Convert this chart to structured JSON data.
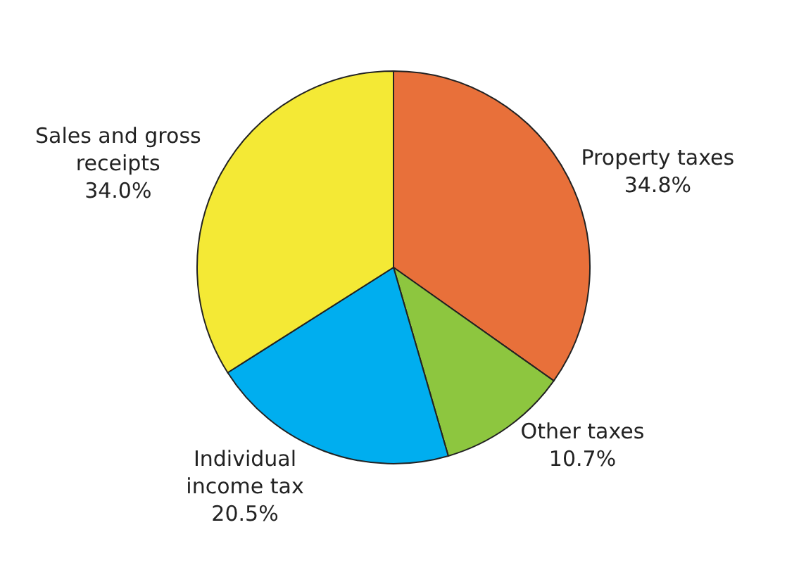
{
  "chart_data": {
    "type": "pie",
    "categories": [
      "Property taxes",
      "Other taxes",
      "Individual income tax",
      "Sales and gross receipts"
    ],
    "values": [
      34.8,
      10.7,
      20.5,
      34.0
    ],
    "value_labels": [
      "34.8%",
      "10.7%",
      "20.5%",
      "34.0%"
    ],
    "colors": [
      "#e8703a",
      "#8dc63f",
      "#00aeef",
      "#f4e935"
    ],
    "legend": false
  }
}
